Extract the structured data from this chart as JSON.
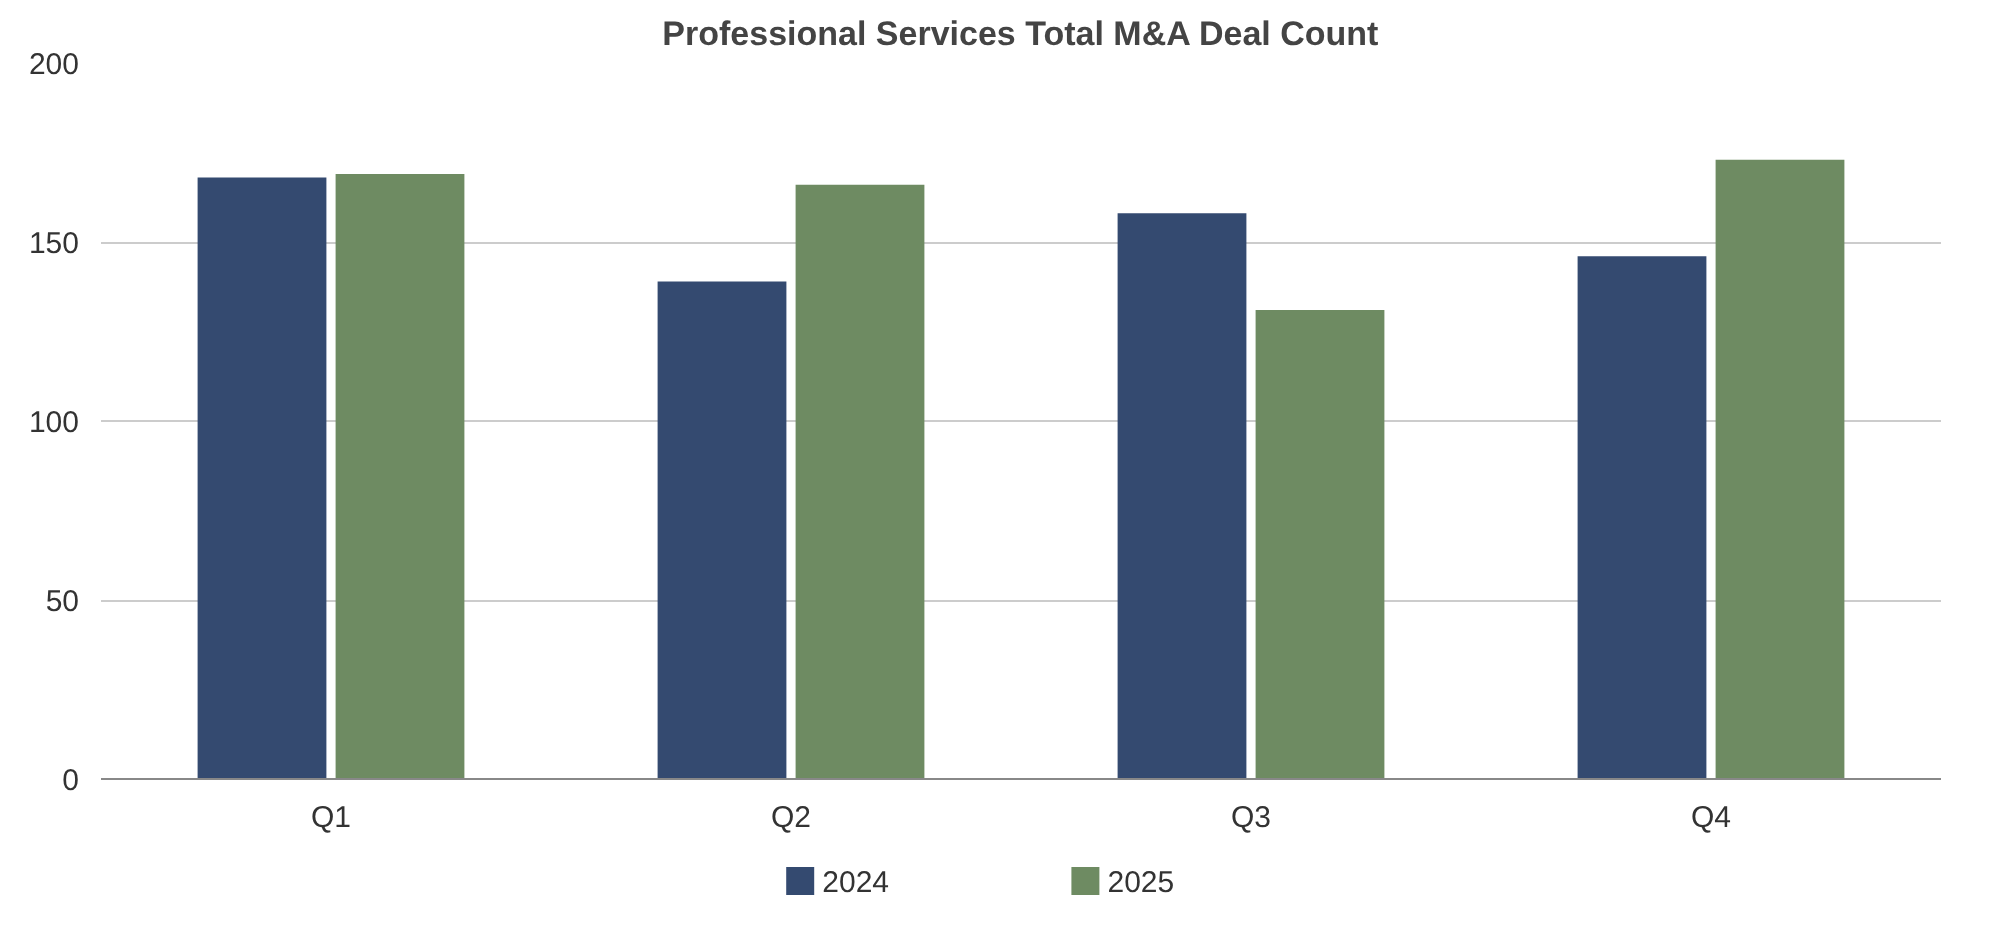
{
  "chart_data": {
    "type": "bar",
    "title": "Professional Services Total M&A Deal Count",
    "categories": [
      "Q1",
      "Q2",
      "Q3",
      "Q4"
    ],
    "series": [
      {
        "name": "2024",
        "color": "#344a70",
        "values": [
          168,
          139,
          158,
          146
        ]
      },
      {
        "name": "2025",
        "color": "#6e8b62",
        "values": [
          169,
          166,
          131,
          173
        ]
      }
    ],
    "ylim": [
      0,
      200
    ],
    "yticks": [
      0,
      50,
      100,
      150,
      200
    ],
    "grid": "y",
    "legend": "bottom"
  }
}
